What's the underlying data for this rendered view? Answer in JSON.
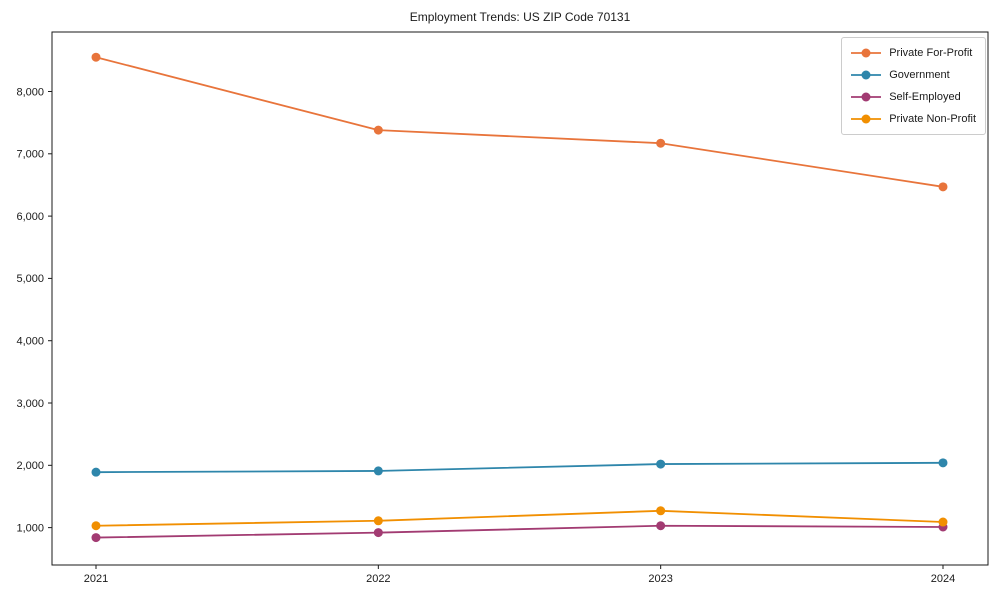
{
  "chart_data": {
    "type": "line",
    "title": "Employment Trends: US ZIP Code 70131",
    "x": [
      2021,
      2022,
      2023,
      2024
    ],
    "xticklabels": [
      "2021",
      "2022",
      "2023",
      "2024"
    ],
    "series": [
      {
        "name": "Private For-Profit",
        "color": "#E8743B",
        "values": [
          8550,
          7380,
          7170,
          6470
        ]
      },
      {
        "name": "Government",
        "color": "#2E86AB",
        "values": [
          1890,
          1910,
          2020,
          2040
        ]
      },
      {
        "name": "Self-Employed",
        "color": "#A23B72",
        "values": [
          840,
          920,
          1030,
          1010
        ]
      },
      {
        "name": "Private Non-Profit",
        "color": "#F18F01",
        "values": [
          1030,
          1110,
          1270,
          1090
        ]
      }
    ],
    "ylim": [
      400,
      8955
    ],
    "yticks": [
      1000,
      2000,
      3000,
      4000,
      5000,
      6000,
      7000,
      8000
    ],
    "ytick_format": "comma",
    "xlabel": "",
    "ylabel": "",
    "grid": false,
    "legend_position": "upper right",
    "axis_color": "#1a1a1a",
    "background": "#ffffff"
  }
}
